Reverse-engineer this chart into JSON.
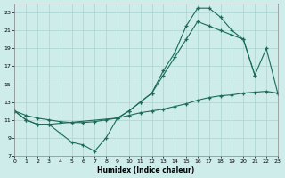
{
  "xlabel": "Humidex (Indice chaleur)",
  "bg_color": "#ceecea",
  "grid_color": "#aad4d0",
  "line_color": "#1a6b5a",
  "line1_x": [
    0,
    1,
    2,
    3,
    4,
    5,
    6,
    7,
    8,
    9,
    10,
    11,
    12,
    13,
    14,
    15,
    16,
    17,
    18,
    19,
    20,
    21
  ],
  "line1_y": [
    12,
    11,
    10.5,
    10.5,
    9.5,
    8.5,
    8.2,
    7.5,
    9,
    11.2,
    12,
    13,
    14,
    16.5,
    18.5,
    21.5,
    23.5,
    23.5,
    22.5,
    21,
    20,
    16
  ],
  "line2_x": [
    0,
    1,
    2,
    3,
    4,
    5,
    6,
    7,
    8,
    9,
    10,
    11,
    12,
    13,
    14,
    15,
    16,
    17,
    18,
    19,
    20,
    21,
    22,
    23
  ],
  "line2_y": [
    12,
    11.5,
    11.2,
    11.0,
    10.8,
    10.7,
    10.7,
    10.8,
    11.0,
    11.2,
    11.5,
    11.8,
    12.0,
    12.2,
    12.5,
    12.8,
    13.2,
    13.5,
    13.7,
    13.8,
    14.0,
    14.1,
    14.2,
    14.0
  ],
  "line3_x": [
    0,
    1,
    2,
    3,
    9,
    10,
    11,
    12,
    13,
    14,
    15,
    16,
    17,
    18,
    19,
    20,
    21,
    22,
    23
  ],
  "line3_y": [
    12,
    11,
    10.5,
    10.5,
    11.2,
    12,
    13,
    14,
    16,
    18,
    20,
    22,
    21.5,
    21,
    20.5,
    20,
    16,
    19,
    14
  ],
  "xlim": [
    0,
    23
  ],
  "ylim": [
    7,
    24
  ],
  "yticks": [
    7,
    9,
    11,
    13,
    15,
    17,
    19,
    21,
    23
  ],
  "xticks": [
    0,
    1,
    2,
    3,
    4,
    5,
    6,
    7,
    8,
    9,
    10,
    11,
    12,
    13,
    14,
    15,
    16,
    17,
    18,
    19,
    20,
    21,
    22,
    23
  ]
}
